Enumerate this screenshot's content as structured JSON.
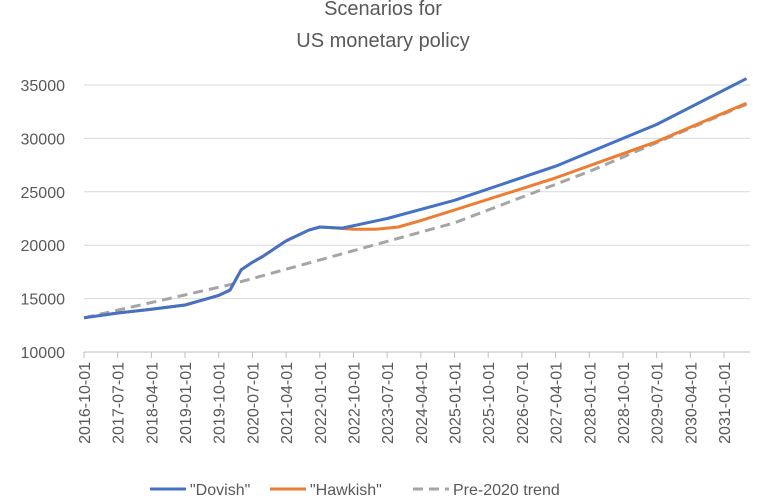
{
  "chart_data": {
    "type": "line",
    "title": [
      "Scenarios for",
      "US monetary policy"
    ],
    "xlabel": "",
    "ylabel": "",
    "ylim": [
      10000,
      35000
    ],
    "yticks": [
      "10000",
      "15000",
      "20000",
      "25000",
      "30000",
      "35000"
    ],
    "xticks": [
      "2016-10-01",
      "2017-07-01",
      "2018-04-01",
      "2019-01-01",
      "2019-10-01",
      "2020-07-01",
      "2021-04-01",
      "2022-01-01",
      "2022-10-01",
      "2023-07-01",
      "2024-04-01",
      "2025-01-01",
      "2025-10-01",
      "2026-07-01",
      "2027-04-01",
      "2028-01-01",
      "2028-10-01",
      "2029-07-01",
      "2030-04-01",
      "2031-01-01"
    ],
    "grid": true,
    "legend_position": "bottom",
    "series": [
      {
        "name": "\"Dovish\"",
        "color": "#4472C4",
        "dash": false,
        "points": [
          [
            "2016-10-01",
            13200
          ],
          [
            "2017-07-01",
            13650
          ],
          [
            "2018-04-01",
            14000
          ],
          [
            "2019-01-01",
            14400
          ],
          [
            "2019-04-01",
            14700
          ],
          [
            "2019-10-01",
            15300
          ],
          [
            "2020-01-01",
            15800
          ],
          [
            "2020-04-01",
            17700
          ],
          [
            "2020-07-01",
            18400
          ],
          [
            "2020-10-01",
            19000
          ],
          [
            "2021-04-01",
            20400
          ],
          [
            "2021-10-01",
            21400
          ],
          [
            "2022-01-01",
            21700
          ],
          [
            "2022-07-01",
            21600
          ],
          [
            "2023-07-01",
            22500
          ],
          [
            "2025-01-01",
            24200
          ],
          [
            "2027-04-01",
            27400
          ],
          [
            "2029-07-01",
            31300
          ],
          [
            "2031-07-01",
            35600
          ]
        ]
      },
      {
        "name": "\"Hawkish\"",
        "color": "#ED7D31",
        "dash": false,
        "points": [
          [
            "2016-10-01",
            13200
          ],
          [
            "2017-07-01",
            13650
          ],
          [
            "2018-04-01",
            14000
          ],
          [
            "2019-01-01",
            14400
          ],
          [
            "2019-04-01",
            14700
          ],
          [
            "2019-10-01",
            15300
          ],
          [
            "2020-01-01",
            15800
          ],
          [
            "2020-04-01",
            17700
          ],
          [
            "2020-07-01",
            18400
          ],
          [
            "2020-10-01",
            19000
          ],
          [
            "2021-04-01",
            20400
          ],
          [
            "2021-10-01",
            21400
          ],
          [
            "2022-01-01",
            21700
          ],
          [
            "2022-10-01",
            21500
          ],
          [
            "2023-04-01",
            21500
          ],
          [
            "2023-10-01",
            21700
          ],
          [
            "2024-04-01",
            22300
          ],
          [
            "2025-01-01",
            23300
          ],
          [
            "2027-04-01",
            26300
          ],
          [
            "2029-07-01",
            29700
          ],
          [
            "2031-07-01",
            33300
          ]
        ]
      },
      {
        "name": "Pre-2020 trend",
        "color": "#A5A5A5",
        "dash": true,
        "points": [
          [
            "2016-10-01",
            13200
          ],
          [
            "2020-01-01",
            16300
          ],
          [
            "2025-01-01",
            22100
          ],
          [
            "2028-01-01",
            26900
          ],
          [
            "2031-07-01",
            33200
          ]
        ]
      }
    ]
  }
}
